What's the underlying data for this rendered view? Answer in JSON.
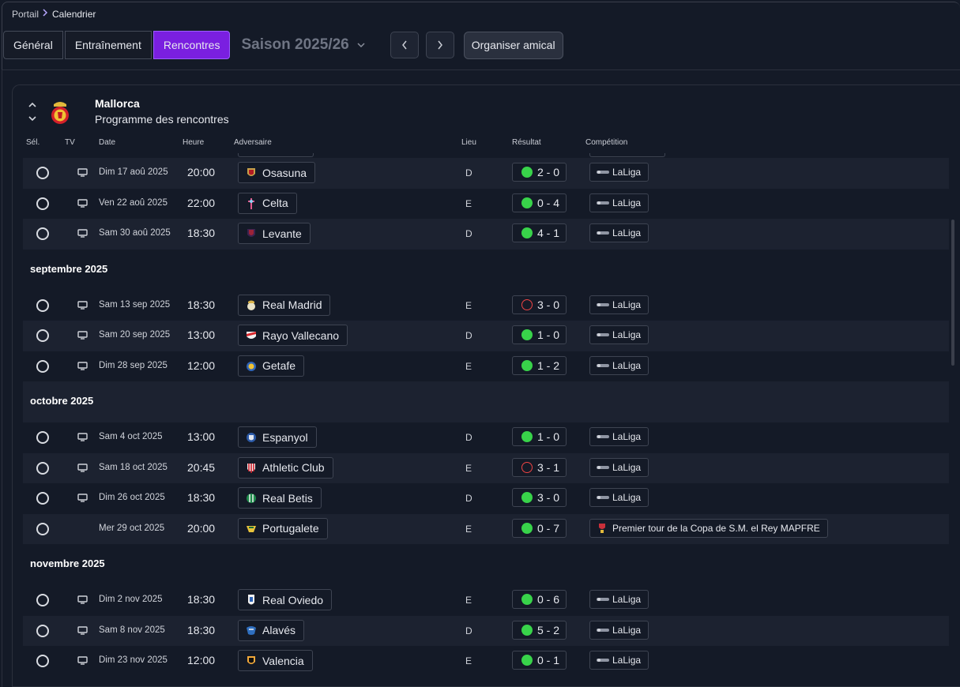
{
  "breadcrumb": {
    "root": "Portail",
    "current": "Calendrier"
  },
  "tabs": [
    {
      "label": "Général"
    },
    {
      "label": "Entraînement"
    },
    {
      "label": "Rencontres",
      "active": true
    }
  ],
  "season": {
    "label": "Saison 2025/26"
  },
  "friendly_button": "Organiser amical",
  "team": {
    "name": "Mallorca",
    "subtitle": "Programme des rencontres"
  },
  "columns": {
    "select": "Sél.",
    "tv": "TV",
    "date": "Date",
    "time": "Heure",
    "opponent": "Adversaire",
    "venue": "Lieu",
    "result": "Résultat",
    "competition": "Compétition"
  },
  "colors": {
    "accent": "#7a1fe0",
    "win": "#38d34a",
    "loss": "#ef4444"
  },
  "fixtures": [
    {
      "type": "match",
      "alt": true,
      "tv": true,
      "date": "Dim 17 aoû 2025",
      "time": "20:00",
      "opponent": "Osasuna",
      "crest": "osasuna-crest",
      "venue": "D",
      "result": "2 - 0",
      "outcome": "win",
      "competition": "LaLiga",
      "comp_icon": "laliga-logo"
    },
    {
      "type": "match",
      "alt": false,
      "tv": true,
      "date": "Ven 22 aoû 2025",
      "time": "22:00",
      "opponent": "Celta",
      "crest": "celta-crest",
      "venue": "E",
      "result": "0 - 4",
      "outcome": "win",
      "competition": "LaLiga",
      "comp_icon": "laliga-logo"
    },
    {
      "type": "match",
      "alt": true,
      "tv": true,
      "date": "Sam 30 aoû 2025",
      "time": "18:30",
      "opponent": "Levante",
      "crest": "levante-crest",
      "venue": "D",
      "result": "4 - 1",
      "outcome": "win",
      "competition": "LaLiga",
      "comp_icon": "laliga-logo"
    },
    {
      "type": "month",
      "alt": false,
      "label": "septembre 2025"
    },
    {
      "type": "match",
      "alt": false,
      "tv": true,
      "date": "Sam 13 sep 2025",
      "time": "18:30",
      "opponent": "Real Madrid",
      "crest": "real-madrid-crest",
      "venue": "E",
      "result": "3 - 0",
      "outcome": "loss",
      "competition": "LaLiga",
      "comp_icon": "laliga-logo"
    },
    {
      "type": "match",
      "alt": true,
      "tv": true,
      "date": "Sam 20 sep 2025",
      "time": "13:00",
      "opponent": "Rayo Vallecano",
      "crest": "rayo-crest",
      "venue": "D",
      "result": "1 - 0",
      "outcome": "win",
      "competition": "LaLiga",
      "comp_icon": "laliga-logo"
    },
    {
      "type": "match",
      "alt": false,
      "tv": true,
      "date": "Dim 28 sep 2025",
      "time": "12:00",
      "opponent": "Getafe",
      "crest": "getafe-crest",
      "venue": "E",
      "result": "1 - 2",
      "outcome": "win",
      "competition": "LaLiga",
      "comp_icon": "laliga-logo"
    },
    {
      "type": "month",
      "alt": true,
      "label": "octobre 2025"
    },
    {
      "type": "match",
      "alt": false,
      "tv": true,
      "date": "Sam 4 oct 2025",
      "time": "13:00",
      "opponent": "Espanyol",
      "crest": "espanyol-crest",
      "venue": "D",
      "result": "1 - 0",
      "outcome": "win",
      "competition": "LaLiga",
      "comp_icon": "laliga-logo"
    },
    {
      "type": "match",
      "alt": true,
      "tv": true,
      "date": "Sam 18 oct 2025",
      "time": "20:45",
      "opponent": "Athletic Club",
      "crest": "athletic-crest",
      "venue": "E",
      "result": "3 - 1",
      "outcome": "loss",
      "competition": "LaLiga",
      "comp_icon": "laliga-logo"
    },
    {
      "type": "match",
      "alt": false,
      "tv": true,
      "date": "Dim 26 oct 2025",
      "time": "18:30",
      "opponent": "Real Betis",
      "crest": "betis-crest",
      "venue": "D",
      "result": "3 - 0",
      "outcome": "win",
      "competition": "LaLiga",
      "comp_icon": "laliga-logo"
    },
    {
      "type": "match",
      "alt": true,
      "tv": false,
      "date": "Mer 29 oct 2025",
      "time": "20:00",
      "opponent": "Portugalete",
      "crest": "portugalete-crest",
      "venue": "E",
      "result": "0 - 7",
      "outcome": "win",
      "competition": "Premier tour de la Copa de S.M. el Rey MAPFRE",
      "comp_icon": "copa-del-rey-logo"
    },
    {
      "type": "month",
      "alt": false,
      "label": "novembre 2025"
    },
    {
      "type": "match",
      "alt": false,
      "tv": true,
      "date": "Dim 2 nov 2025",
      "time": "18:30",
      "opponent": "Real Oviedo",
      "crest": "oviedo-crest",
      "venue": "E",
      "result": "0 - 6",
      "outcome": "win",
      "competition": "LaLiga",
      "comp_icon": "laliga-logo"
    },
    {
      "type": "match",
      "alt": true,
      "tv": true,
      "date": "Sam 8 nov 2025",
      "time": "18:30",
      "opponent": "Alavés",
      "crest": "alaves-crest",
      "venue": "D",
      "result": "5 - 2",
      "outcome": "win",
      "competition": "LaLiga",
      "comp_icon": "laliga-logo"
    },
    {
      "type": "match",
      "alt": false,
      "tv": true,
      "date": "Dim 23 nov 2025",
      "time": "12:00",
      "opponent": "Valencia",
      "crest": "valencia-crest",
      "venue": "E",
      "result": "0 - 1",
      "outcome": "win",
      "competition": "LaLiga",
      "comp_icon": "laliga-logo"
    }
  ]
}
